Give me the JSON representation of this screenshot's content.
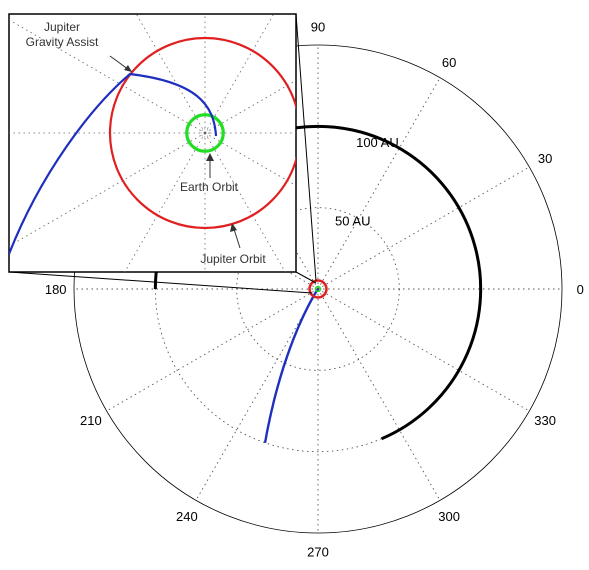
{
  "chart_data": {
    "type": "polar",
    "radial_unit": "AU",
    "r_max": 150,
    "radial_ticks": [
      {
        "value": 50,
        "label": "50 AU"
      },
      {
        "value": 100,
        "label": "100 AU"
      }
    ],
    "angle_ticks": [
      {
        "deg": 0,
        "label": "0"
      },
      {
        "deg": 30,
        "label": "30"
      },
      {
        "deg": 60,
        "label": "60"
      },
      {
        "deg": 90,
        "label": "90"
      },
      {
        "deg": 180,
        "label": "180"
      },
      {
        "deg": 210,
        "label": "210"
      },
      {
        "deg": 240,
        "label": "240"
      },
      {
        "deg": 270,
        "label": "270"
      },
      {
        "deg": 300,
        "label": "300"
      },
      {
        "deg": 330,
        "label": "330"
      }
    ],
    "grid": true,
    "series": [
      {
        "kind": "circle",
        "r": 100,
        "theta_range": [
          -67,
          180
        ],
        "color": "#000000"
      },
      {
        "kind": "trajectory",
        "color": "#1f2fbf",
        "points": [
          [
            0,
            0
          ],
          [
            10,
            252
          ],
          [
            25,
            246
          ],
          [
            45,
            242
          ],
          [
            65,
            244
          ],
          [
            80,
            248
          ],
          [
            92,
            250
          ]
        ]
      },
      {
        "kind": "circle",
        "r": 5.2,
        "color": "#e02020"
      }
    ],
    "inset": {
      "labels": {
        "gravity_assist": "Jupiter\nGravity Assist",
        "earth_orbit": "Earth Orbit",
        "jupiter_orbit": "Jupiter Orbit"
      },
      "jupiter_orbit_r": 5.2,
      "earth_orbit_r": 1.0,
      "colors": {
        "jupiter": "#e02020",
        "earth": "#22dd22",
        "trajectory": "#1f2fbf"
      }
    }
  }
}
